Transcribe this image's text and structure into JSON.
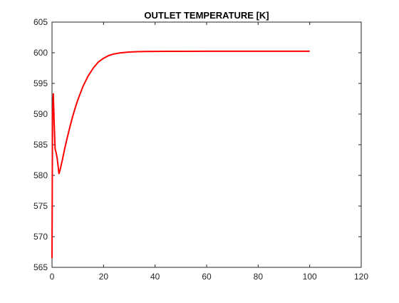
{
  "chart_data": {
    "type": "line",
    "title": "OUTLET TEMPERATURE [K]",
    "xlabel": "",
    "ylabel": "",
    "xlim": [
      0,
      120
    ],
    "ylim": [
      565,
      605
    ],
    "xticks": [
      0,
      20,
      40,
      60,
      80,
      100,
      120
    ],
    "yticks": [
      565,
      570,
      575,
      580,
      585,
      590,
      595,
      600,
      605
    ],
    "grid": false,
    "legend": "none",
    "series": [
      {
        "color": "#ff0000",
        "x": [
          0,
          0.2,
          0.5,
          0.8,
          1.2,
          1.6,
          2.0,
          2.4,
          2.7,
          3.2,
          4,
          5,
          6,
          7,
          8,
          9,
          10,
          12,
          14,
          16,
          18,
          20,
          22,
          24,
          26,
          28,
          30,
          33,
          36,
          40,
          45,
          50,
          60,
          70,
          80,
          90,
          100
        ],
        "y": [
          566.5,
          590.0,
          593.3,
          589.0,
          584.3,
          583.7,
          582.8,
          581.4,
          580.3,
          581.0,
          582.5,
          584.5,
          586.3,
          588.0,
          589.6,
          591.0,
          592.3,
          594.5,
          596.2,
          597.5,
          598.5,
          599.1,
          599.55,
          599.8,
          599.95,
          600.05,
          600.12,
          600.18,
          600.2,
          600.22,
          600.23,
          600.24,
          600.25,
          600.25,
          600.25,
          600.25,
          600.25
        ]
      }
    ]
  },
  "colors": {
    "axis": "#262626",
    "line": "#ff0000",
    "background": "#ffffff"
  }
}
